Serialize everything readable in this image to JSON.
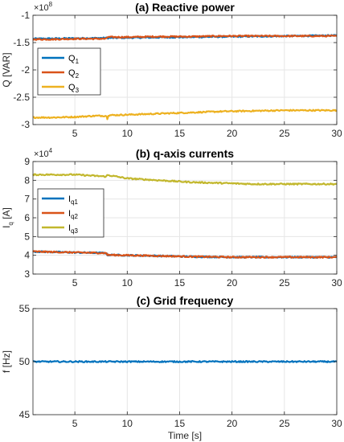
{
  "chart_data": [
    {
      "type": "line",
      "title": "(a) Reactive power",
      "ylabel": "Q [VAR]",
      "xlabel": "",
      "y_exponent_base": "×10",
      "y_exponent_power": "8",
      "xlim": [
        1,
        30
      ],
      "ylim": [
        -3,
        -1
      ],
      "xticks": [
        5,
        10,
        15,
        20,
        25,
        30
      ],
      "yticks": [
        -1,
        -1.5,
        -2,
        -2.5,
        -3
      ],
      "yticklabels": [
        "-1",
        "-1.5",
        "-2",
        "-2.5",
        "-3"
      ],
      "grid": true,
      "legend_placement": "middle-left",
      "series": [
        {
          "name_main": "Q",
          "name_sub": "1",
          "color": "#0072BD",
          "x": [
            1,
            30
          ],
          "values": [
            -1.43,
            -1.37
          ]
        },
        {
          "name_main": "Q",
          "name_sub": "2",
          "color": "#D95319",
          "x": [
            1,
            3,
            5,
            6,
            7,
            8,
            8.1,
            10,
            13,
            16,
            19,
            22,
            25,
            28,
            30
          ],
          "values": [
            -1.44,
            -1.44,
            -1.43,
            -1.43,
            -1.43,
            -1.43,
            -1.4,
            -1.4,
            -1.39,
            -1.39,
            -1.38,
            -1.38,
            -1.38,
            -1.38,
            -1.38
          ]
        },
        {
          "name_main": "Q",
          "name_sub": "3",
          "color": "#EDB120",
          "x": [
            1,
            3,
            5,
            6,
            7,
            8,
            8.1,
            8.2,
            10,
            13,
            16,
            19,
            22,
            25,
            28,
            30
          ],
          "values": [
            -2.87,
            -2.87,
            -2.86,
            -2.85,
            -2.84,
            -2.84,
            -2.89,
            -2.83,
            -2.82,
            -2.8,
            -2.78,
            -2.76,
            -2.75,
            -2.74,
            -2.74,
            -2.74
          ]
        }
      ]
    },
    {
      "type": "line",
      "title": "(b) q-axis currents",
      "ylabel_main": "I",
      "ylabel_sub": "q",
      "ylabel_unit": " [A]",
      "xlabel": "",
      "y_exponent_base": "×10",
      "y_exponent_power": "4",
      "xlim": [
        1,
        30
      ],
      "ylim": [
        3,
        9
      ],
      "xticks": [
        5,
        10,
        15,
        20,
        25,
        30
      ],
      "yticks": [
        3,
        4,
        5,
        6,
        7,
        8,
        9
      ],
      "yticklabels": [
        "3",
        "4",
        "5",
        "6",
        "7",
        "8",
        "9"
      ],
      "grid": true,
      "legend_placement": "middle-left",
      "series": [
        {
          "name_main": "I",
          "name_sub": "q1",
          "color": "#0072BD",
          "x": [
            1,
            5,
            8,
            8.1,
            12,
            16,
            20,
            25,
            30
          ],
          "values": [
            4.2,
            4.15,
            4.12,
            4.02,
            3.98,
            3.93,
            3.9,
            3.9,
            3.9
          ]
        },
        {
          "name_main": "I",
          "name_sub": "q2",
          "color": "#D95319",
          "x": [
            1,
            5,
            8,
            8.1,
            12,
            16,
            20,
            25,
            30
          ],
          "values": [
            4.2,
            4.15,
            4.12,
            4.02,
            3.98,
            3.93,
            3.9,
            3.9,
            3.9
          ]
        },
        {
          "name_main": "I",
          "name_sub": "q3",
          "color": "#C2B72D",
          "x": [
            1,
            3,
            5,
            8,
            8.1,
            10,
            13,
            16,
            19,
            22,
            25,
            28,
            30
          ],
          "values": [
            8.3,
            8.3,
            8.3,
            8.2,
            8.28,
            8.1,
            8.0,
            7.9,
            7.85,
            7.8,
            7.8,
            7.8,
            7.8
          ]
        }
      ]
    },
    {
      "type": "line",
      "title": "(c) Grid frequency",
      "ylabel": "f [Hz]",
      "xlabel": "Time [s]",
      "xlim": [
        1,
        30
      ],
      "ylim": [
        45,
        55
      ],
      "xticks": [
        5,
        10,
        15,
        20,
        25,
        30
      ],
      "yticks": [
        45,
        50,
        55
      ],
      "yticklabels": [
        "45",
        "50",
        "55"
      ],
      "grid": true,
      "series": [
        {
          "color": "#0072BD",
          "x": [
            1,
            30
          ],
          "values": [
            50,
            50
          ]
        }
      ]
    }
  ]
}
